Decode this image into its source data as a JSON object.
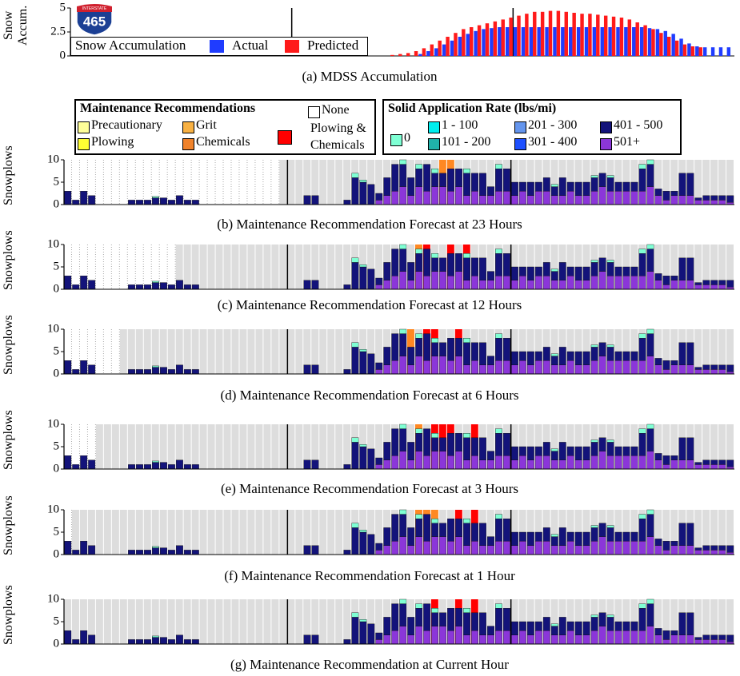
{
  "logo": {
    "top": "INTERSTATE",
    "number": "465"
  },
  "legends": {
    "maintenance": {
      "title": "Maintenance Recommendations",
      "items": [
        {
          "name": "Precautionary",
          "color": "#ffff99"
        },
        {
          "name": "Plowing",
          "color": "#ffff33"
        },
        {
          "name": "Grit",
          "color": "#f8b143"
        },
        {
          "name": "Chemicals",
          "color": "#f0822a"
        },
        {
          "name": "None",
          "color": "#ffffff"
        },
        {
          "name": "Plowing & Chemicals",
          "color": "#ff0000"
        }
      ]
    },
    "rate": {
      "title": "Solid Application Rate (lbs/mi)",
      "items": [
        {
          "name": "0",
          "color": "#7fffd4"
        },
        {
          "name": "1 - 100",
          "color": "#00eeee"
        },
        {
          "name": "101 - 200",
          "color": "#20b2aa"
        },
        {
          "name": "201 - 300",
          "color": "#6495ed"
        },
        {
          "name": "301 - 400",
          "color": "#1e50ff"
        },
        {
          "name": "401 - 500",
          "color": "#13137a"
        },
        {
          "name": "501+",
          "color": "#8b36d9"
        }
      ]
    }
  },
  "snowplows": {
    "ylabel": "Snowplows",
    "ylim": [
      0,
      10
    ],
    "yticks": [
      0,
      5,
      10
    ],
    "series": [
      {
        "color": "#8b36d9",
        "values": [
          null,
          null,
          null,
          null,
          null,
          null,
          null,
          null,
          null,
          null,
          null,
          null,
          null,
          null,
          null,
          null,
          null,
          null,
          null,
          null,
          null,
          null,
          null,
          null,
          null,
          null,
          null,
          null,
          null,
          null,
          null,
          null,
          null,
          null,
          null,
          null,
          null,
          null,
          null,
          1,
          2,
          3,
          4,
          2,
          4,
          3,
          4,
          4,
          3,
          4,
          2,
          3,
          2,
          2,
          3,
          3,
          2,
          3,
          2,
          3,
          3,
          2,
          2,
          3,
          2,
          2,
          3,
          4,
          3,
          3,
          3,
          3,
          3,
          4,
          2,
          1,
          2,
          2,
          2,
          1,
          1,
          1,
          1,
          0.5
        ]
      },
      {
        "color": "#13137a",
        "values": [
          3,
          1,
          3,
          2,
          null,
          null,
          null,
          null,
          1,
          1,
          1,
          1.5,
          1.5,
          1,
          2,
          1,
          1,
          null,
          null,
          null,
          null,
          null,
          null,
          null,
          null,
          null,
          null,
          null,
          null,
          null,
          2,
          2,
          null,
          null,
          null,
          1,
          6,
          5,
          4.5,
          1.5,
          4,
          6,
          5,
          4,
          4,
          6,
          3,
          3,
          5,
          4,
          5,
          4,
          5,
          2,
          5,
          5,
          3,
          2,
          3,
          2,
          3,
          2,
          4,
          2,
          3,
          3,
          3,
          3,
          3,
          2,
          2,
          2,
          5,
          5,
          1.5,
          2,
          1,
          5,
          5,
          0.5,
          1,
          1,
          1,
          1.5
        ]
      },
      {
        "color": "#7fffd4",
        "values": [
          null,
          null,
          null,
          null,
          null,
          null,
          null,
          null,
          null,
          null,
          null,
          0.3,
          null,
          null,
          null,
          null,
          null,
          null,
          null,
          null,
          null,
          null,
          null,
          null,
          null,
          null,
          null,
          null,
          null,
          null,
          null,
          null,
          null,
          null,
          null,
          null,
          1,
          0.5,
          null,
          null,
          null,
          null,
          1,
          null,
          1,
          null,
          1,
          null,
          null,
          null,
          1,
          null,
          null,
          null,
          1,
          null,
          null,
          null,
          null,
          null,
          null,
          0.5,
          null,
          null,
          null,
          null,
          0.5,
          null,
          0.5,
          null,
          null,
          null,
          1,
          1,
          null,
          null,
          null,
          null,
          null,
          null,
          null,
          null,
          null,
          null
        ]
      }
    ]
  },
  "chart_data": [
    {
      "type": "bar",
      "title": "(a) MDSS Accumulation",
      "ylabel": "Snow Accum.",
      "ylim": [
        0,
        5
      ],
      "yticks": [
        0,
        2.5,
        5
      ],
      "legend_title": "Snow Accumulation",
      "series": [
        {
          "name": "Actual",
          "color": "#1f3cff",
          "values": [
            null,
            null,
            null,
            null,
            null,
            null,
            null,
            null,
            null,
            null,
            null,
            null,
            null,
            null,
            null,
            null,
            null,
            null,
            null,
            null,
            null,
            null,
            null,
            null,
            null,
            null,
            null,
            null,
            null,
            null,
            null,
            null,
            null,
            null,
            null,
            null,
            null,
            null,
            null,
            null,
            null,
            null,
            null,
            null,
            0.2,
            0.5,
            0.8,
            1.2,
            1.6,
            2,
            2.3,
            2.6,
            2.8,
            2.9,
            3,
            3,
            3,
            3,
            3,
            3,
            3,
            3,
            3,
            3,
            3,
            3,
            3,
            3,
            3,
            3,
            3,
            3,
            3,
            2.9,
            2.8,
            2.6,
            2.3,
            1.8,
            1.3,
            1,
            0.9,
            0.9,
            0.9,
            0.9
          ]
        },
        {
          "name": "Predicted",
          "color": "#ff1a1a",
          "values": [
            null,
            null,
            null,
            null,
            null,
            null,
            null,
            null,
            null,
            null,
            null,
            null,
            null,
            null,
            null,
            null,
            null,
            null,
            null,
            null,
            null,
            null,
            null,
            null,
            null,
            null,
            null,
            null,
            null,
            null,
            null,
            null,
            null,
            null,
            null,
            null,
            null,
            null,
            null,
            null,
            0.1,
            0.2,
            0.3,
            0.5,
            0.8,
            1.2,
            1.6,
            2,
            2.4,
            2.8,
            3,
            3.2,
            3.4,
            3.6,
            3.8,
            4,
            4.2,
            4.4,
            4.6,
            4.6,
            4.7,
            4.7,
            4.6,
            4.5,
            4.4,
            4.4,
            4.3,
            4.2,
            4.1,
            4,
            3.8,
            3.5,
            3.2,
            2.8,
            2.4,
            2,
            1.6,
            1.2,
            1,
            0.9,
            null,
            null,
            null,
            null
          ]
        }
      ]
    },
    {
      "type": "stacked-bar",
      "title": "(b) Maintenance Recommendation Forecast at 23 Hours",
      "column_colors": [
        null,
        null,
        null,
        null,
        null,
        null,
        null,
        null,
        null,
        null,
        null,
        null,
        null,
        null,
        null,
        null,
        null,
        null,
        null,
        null,
        null,
        null,
        null,
        null,
        null,
        null,
        null,
        "#ddd",
        "#ddd",
        "#ddd",
        "#ddd",
        "#ddd",
        "#ddd",
        "#ddd",
        "#ddd",
        "#ddd",
        "#ddd",
        "#ddd",
        "#ddd",
        "#ddd",
        "#ddd",
        "#ddd",
        "#ddd",
        "#ddd",
        "#ddd",
        "#ddd",
        "#ddd",
        "#f82",
        "#f82",
        "#ddd",
        "#ddd",
        "#ddd",
        "#ddd",
        "#ddd",
        "#ddd",
        "#ddd",
        "#ddd",
        "#ddd",
        "#ddd",
        "#ddd",
        "#ddd",
        "#ddd",
        "#ddd",
        "#ddd",
        "#ddd",
        "#ddd",
        "#ddd",
        "#ddd",
        "#ddd",
        "#ddd",
        "#ddd",
        "#ddd",
        "#ddd",
        "#ddd",
        "#ddd",
        "#ddd",
        "#ddd",
        "#ddd",
        "#ddd",
        "#ddd",
        "#ddd",
        "#ddd",
        "#ddd",
        "#ddd"
      ]
    },
    {
      "type": "stacked-bar",
      "title": "(c) Maintenance Recommendation Forecast at 12 Hours",
      "column_colors": [
        null,
        null,
        null,
        null,
        null,
        null,
        null,
        null,
        null,
        null,
        null,
        null,
        null,
        null,
        "#ddd",
        "#ddd",
        "#ddd",
        "#ddd",
        "#ddd",
        "#ddd",
        "#ddd",
        "#ddd",
        "#ddd",
        "#ddd",
        "#ddd",
        "#ddd",
        "#ddd",
        "#ddd",
        "#ddd",
        "#ddd",
        "#ddd",
        "#ddd",
        "#ddd",
        "#ddd",
        "#ddd",
        "#ddd",
        "#ddd",
        "#ddd",
        "#ddd",
        "#ddd",
        "#ddd",
        "#ddd",
        "#ddd",
        "#ddd",
        "#f82",
        "#f00",
        "#ddd",
        "#ddd",
        "#f00",
        "#ddd",
        "#f00",
        "#ddd",
        "#ddd",
        "#ddd",
        "#ddd",
        "#ddd",
        "#ddd",
        "#ddd",
        "#ddd",
        "#ddd",
        "#ddd",
        "#ddd",
        "#ddd",
        "#ddd",
        "#ddd",
        "#ddd",
        "#ddd",
        "#ddd",
        "#ddd",
        "#ddd",
        "#ddd",
        "#ddd",
        "#ddd",
        "#ddd",
        "#ddd",
        "#ddd",
        "#ddd",
        "#ddd",
        "#ddd",
        "#ddd",
        "#ddd",
        "#ddd",
        "#ddd",
        "#ddd"
      ]
    },
    {
      "type": "stacked-bar",
      "title": "(d) Maintenance Recommendation Forecast at 6 Hours",
      "column_colors": [
        null,
        null,
        null,
        null,
        null,
        null,
        null,
        "#ddd",
        "#ddd",
        "#ddd",
        "#ddd",
        "#ddd",
        "#ddd",
        "#ddd",
        "#ddd",
        "#ddd",
        "#ddd",
        "#ddd",
        "#ddd",
        "#ddd",
        "#ddd",
        "#ddd",
        "#ddd",
        "#ddd",
        "#ddd",
        "#ddd",
        "#ddd",
        "#ddd",
        "#ddd",
        "#ddd",
        "#ddd",
        "#ddd",
        "#ddd",
        "#ddd",
        "#ddd",
        "#ddd",
        "#ddd",
        "#ddd",
        "#ddd",
        "#ddd",
        "#ddd",
        "#ddd",
        "#ddd",
        "#f82",
        "#ddd",
        "#f00",
        "#f00",
        "#ddd",
        "#ddd",
        "#f00",
        "#ddd",
        "#ddd",
        "#ddd",
        "#ddd",
        "#ddd",
        "#ddd",
        "#ddd",
        "#ddd",
        "#ddd",
        "#ddd",
        "#ddd",
        "#ddd",
        "#ddd",
        "#ddd",
        "#ddd",
        "#ddd",
        "#ddd",
        "#ddd",
        "#ddd",
        "#ddd",
        "#ddd",
        "#ddd",
        "#ddd",
        "#ddd",
        "#ddd",
        "#ddd",
        "#ddd",
        "#ddd",
        "#ddd",
        "#ddd",
        "#ddd",
        "#ddd",
        "#ddd",
        "#ddd"
      ]
    },
    {
      "type": "stacked-bar",
      "title": "(e) Maintenance Recommendation Forecast at 3 Hours",
      "column_colors": [
        null,
        null,
        null,
        null,
        "#ddd",
        "#ddd",
        "#ddd",
        "#ddd",
        "#ddd",
        "#ddd",
        "#ddd",
        "#ddd",
        "#ddd",
        "#ddd",
        "#ddd",
        "#ddd",
        "#ddd",
        "#ddd",
        "#ddd",
        "#ddd",
        "#ddd",
        "#ddd",
        "#ddd",
        "#ddd",
        "#ddd",
        "#ddd",
        "#ddd",
        "#ddd",
        "#ddd",
        "#ddd",
        "#ddd",
        "#ddd",
        "#ddd",
        "#ddd",
        "#ddd",
        "#ddd",
        "#ddd",
        "#ddd",
        "#ddd",
        "#ddd",
        "#ddd",
        "#ddd",
        "#ddd",
        "#ddd",
        "#f82",
        "#ddd",
        "#f00",
        "#f00",
        "#f00",
        "#ddd",
        "#ddd",
        "#f00",
        "#ddd",
        "#ddd",
        "#ddd",
        "#ddd",
        "#ddd",
        "#ddd",
        "#ddd",
        "#ddd",
        "#ddd",
        "#ddd",
        "#ddd",
        "#ddd",
        "#ddd",
        "#ddd",
        "#ddd",
        "#ddd",
        "#ddd",
        "#ddd",
        "#ddd",
        "#ddd",
        "#ddd",
        "#ddd",
        "#ddd",
        "#ddd",
        "#ddd",
        "#ddd",
        "#ddd",
        "#ddd",
        "#ddd",
        "#ddd",
        "#ddd",
        "#ddd"
      ]
    },
    {
      "type": "stacked-bar",
      "title": "(f) Maintenance Recommendation Forecast at 1 Hour",
      "column_colors": [
        null,
        "#ddd",
        "#ddd",
        "#ddd",
        "#ddd",
        "#ddd",
        "#ddd",
        "#ddd",
        "#ddd",
        "#ddd",
        "#ddd",
        "#ddd",
        "#ddd",
        "#ddd",
        "#ddd",
        "#ddd",
        "#ddd",
        "#ddd",
        "#ddd",
        "#ddd",
        "#ddd",
        "#ddd",
        "#ddd",
        "#ddd",
        "#ddd",
        "#ddd",
        "#ddd",
        "#ddd",
        "#ddd",
        "#ddd",
        "#ddd",
        "#ddd",
        "#ddd",
        "#ddd",
        "#ddd",
        "#ddd",
        "#ddd",
        "#ddd",
        "#ddd",
        "#ddd",
        "#ddd",
        "#ddd",
        "#ddd",
        "#ddd",
        "#f82",
        "#f82",
        "#f82",
        "#ddd",
        "#ddd",
        "#f00",
        "#ddd",
        "#f00",
        "#ddd",
        "#ddd",
        "#ddd",
        "#ddd",
        "#ddd",
        "#ddd",
        "#ddd",
        "#ddd",
        "#ddd",
        "#ddd",
        "#ddd",
        "#ddd",
        "#ddd",
        "#ddd",
        "#ddd",
        "#ddd",
        "#ddd",
        "#ddd",
        "#ddd",
        "#ddd",
        "#ddd",
        "#ddd",
        "#ddd",
        "#ddd",
        "#ddd",
        "#ddd",
        "#ddd",
        "#ddd",
        "#ddd",
        "#ddd",
        "#ddd",
        "#ddd"
      ]
    },
    {
      "type": "stacked-bar",
      "title": "(g) Maintenance Recommendation at Current Hour",
      "column_colors": [
        "#ddd",
        "#ddd",
        "#ddd",
        "#ddd",
        "#ddd",
        "#ddd",
        "#ddd",
        "#ddd",
        "#ddd",
        "#ddd",
        "#ddd",
        "#ddd",
        "#ddd",
        "#ddd",
        "#ddd",
        "#ddd",
        "#ddd",
        "#ddd",
        "#ddd",
        "#ddd",
        "#ddd",
        "#ddd",
        "#ddd",
        "#ddd",
        "#ddd",
        "#ddd",
        "#ddd",
        "#ddd",
        "#ddd",
        "#ddd",
        "#ddd",
        "#ddd",
        "#ddd",
        "#ddd",
        "#ddd",
        "#ddd",
        "#ddd",
        "#ddd",
        "#ddd",
        "#ddd",
        "#ddd",
        "#ddd",
        "#ddd",
        "#ddd",
        "#ddd",
        "#ddd",
        "#f00",
        "#ddd",
        "#ddd",
        "#f00",
        "#ddd",
        "#f00",
        "#ddd",
        "#ddd",
        "#ddd",
        "#ddd",
        "#ddd",
        "#ddd",
        "#ddd",
        "#ddd",
        "#ddd",
        "#ddd",
        "#ddd",
        "#ddd",
        "#ddd",
        "#ddd",
        "#ddd",
        "#ddd",
        "#ddd",
        "#ddd",
        "#ddd",
        "#ddd",
        "#ddd",
        "#ddd",
        "#ddd",
        "#ddd",
        "#ddd",
        "#ddd",
        "#ddd",
        "#ddd",
        "#ddd",
        "#ddd",
        "#ddd",
        "#ddd"
      ]
    }
  ]
}
